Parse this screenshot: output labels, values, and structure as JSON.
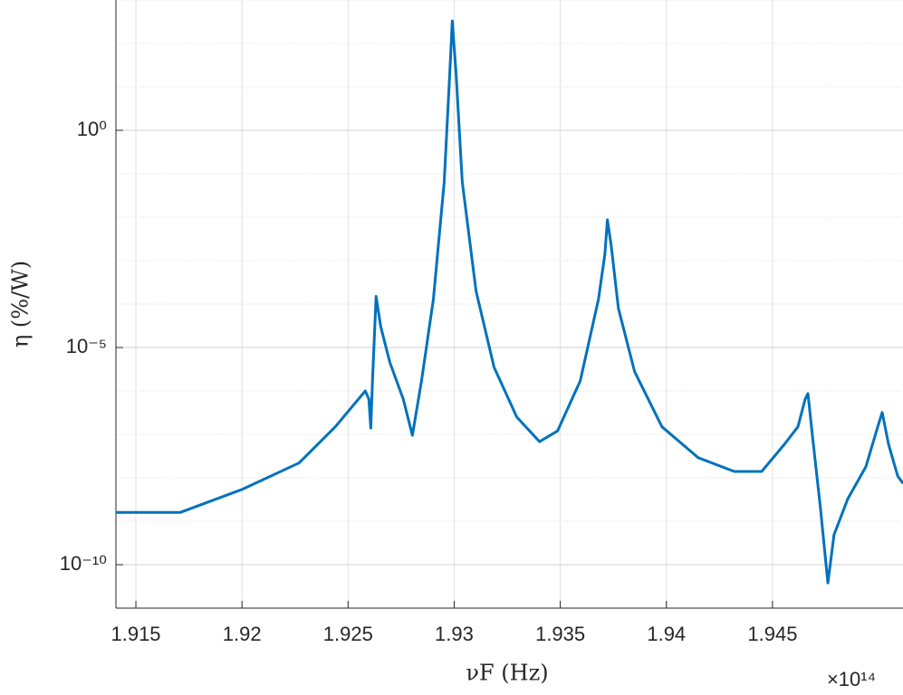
{
  "chart_data": {
    "type": "line",
    "x_label": "νF (Hz)",
    "y_label": "η (%/W)",
    "x_multiplier_label": "×10¹⁴",
    "xlim": [
      1.91406,
      1.95115
    ],
    "xticks": [
      1.915,
      1.92,
      1.925,
      1.93,
      1.935,
      1.94,
      1.945
    ],
    "ylim": [
      1e-11,
      1000
    ],
    "log_y": true,
    "yticks": [
      {
        "value": 1e-10,
        "label": "10⁻¹⁰"
      },
      {
        "value": 1e-05,
        "label": "10⁻⁵"
      },
      {
        "value": 1,
        "label": "10⁰"
      }
    ],
    "grid": true,
    "minor_grid": true,
    "series": [
      {
        "color": "#0072bd",
        "x": [
          1.91406,
          1.9171,
          1.92,
          1.92269,
          1.9244,
          1.92581,
          1.92598,
          1.92607,
          1.92615,
          1.92632,
          1.92654,
          1.92697,
          1.9276,
          1.92803,
          1.92846,
          1.92902,
          1.92953,
          1.92979,
          1.92991,
          1.93009,
          1.93038,
          1.93103,
          1.93188,
          1.93295,
          1.93402,
          1.93487,
          1.93594,
          1.9368,
          1.9371,
          1.93722,
          1.9374,
          1.93774,
          1.9385,
          1.93979,
          1.9415,
          1.9432,
          1.94449,
          1.94556,
          1.9462,
          1.94654,
          1.94667,
          1.94688,
          1.94726,
          1.94761,
          1.9479,
          1.94855,
          1.9494,
          1.94996,
          1.95017,
          1.95047,
          1.9509,
          1.95115
        ],
        "values": [
          1.6e-09,
          1.6e-09,
          5.4e-09,
          2.2e-08,
          1.5e-07,
          1e-06,
          6.5e-07,
          1.4e-07,
          1.7e-06,
          0.00015,
          3e-05,
          4.5e-06,
          6.5e-07,
          9.5e-08,
          1.7e-06,
          0.00013,
          0.065,
          20,
          330,
          20,
          0.065,
          0.0002,
          3.5e-06,
          2.5e-07,
          6.8e-08,
          1.2e-07,
          1.7e-06,
          0.00013,
          0.0014,
          0.0087,
          0.0022,
          7.9e-05,
          2.8e-06,
          1.5e-07,
          2.9e-08,
          1.4e-08,
          1.4e-08,
          5.9e-08,
          1.5e-07,
          6.5e-07,
          8.7e-07,
          9.5e-08,
          2e-09,
          3.8e-11,
          4.9e-10,
          3.3e-09,
          1.8e-08,
          1.5e-07,
          3.2e-07,
          5.9e-08,
          1.1e-08,
          7.4e-09
        ]
      }
    ]
  }
}
